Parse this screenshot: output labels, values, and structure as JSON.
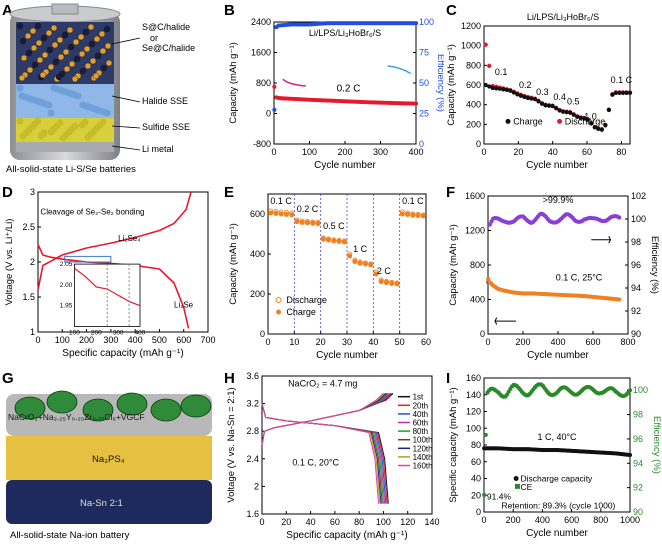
{
  "figure": {
    "panel_labels": [
      "A",
      "B",
      "C",
      "D",
      "E",
      "F",
      "G",
      "H",
      "I"
    ]
  },
  "panel_a": {
    "labels": [
      "S@C/halide",
      "or",
      "Se@C/halide",
      "Halide SSE",
      "Sulfide SSE",
      "Li metal"
    ],
    "caption": "All-solid-state Li-S/Se batteries"
  },
  "panel_g": {
    "labels": [
      "NaCrO₂+Na₂.₂₅Y₀.₂₅Zr₀.₇₅Cl₆+VGCF",
      "Na₃PS₄",
      "Na-Sn 2:1"
    ],
    "caption": "All-solid-state Na-ion battery"
  },
  "chart_data": [
    {
      "id": "B",
      "type": "scatter",
      "title": "Li/LPS/Li₃HoBr₆/S",
      "xlabel": "Cycle number",
      "ylabel": "Capacity (mAh g⁻¹)",
      "y2label": "Efficiency (%)",
      "xlim": [
        0,
        400
      ],
      "ylim": [
        -800,
        2400
      ],
      "y2lim": [
        0,
        100
      ],
      "xticks": [
        0,
        100,
        200,
        300,
        400
      ],
      "yticks": [
        -800,
        0,
        800,
        1600,
        2400
      ],
      "y2ticks": [
        0,
        25,
        50,
        75,
        100
      ],
      "annotation": "0.2 C",
      "series": [
        {
          "name": "Capacity",
          "axis": "left",
          "color": "#e8192c",
          "x": [
            1,
            3,
            5,
            10,
            20,
            40,
            60,
            80,
            100,
            150,
            200,
            250,
            300,
            350,
            400
          ],
          "values": [
            700,
            480,
            430,
            410,
            400,
            390,
            380,
            370,
            360,
            340,
            320,
            300,
            285,
            270,
            260
          ]
        },
        {
          "name": "Efficiency",
          "axis": "right",
          "color": "#1f4fe0",
          "x": [
            1,
            3,
            5,
            10,
            50,
            100,
            150,
            200,
            250,
            300,
            350,
            400
          ],
          "values": [
            28,
            90,
            95,
            97,
            98,
            98,
            99,
            99,
            99,
            99,
            99,
            99
          ]
        }
      ]
    },
    {
      "id": "C",
      "type": "scatter",
      "title": "Li/LPS/Li₃HoBr₆/S",
      "xlabel": "Cycle number",
      "ylabel": "Capacity (mAh g⁻¹)",
      "xlim": [
        0,
        85
      ],
      "ylim": [
        0,
        1200
      ],
      "xticks": [
        0,
        20,
        40,
        60,
        80
      ],
      "yticks": [
        0,
        200,
        400,
        600,
        800,
        1000,
        1200
      ],
      "rate_labels": [
        "0.1",
        "0.2",
        "0.3",
        "0.4",
        "0.5",
        "1.0",
        "0.1 C"
      ],
      "legend": [
        "Charge",
        "Discharge"
      ],
      "series": [
        {
          "name": "Charge",
          "color": "#111111",
          "x": [
            1,
            5,
            10,
            15,
            20,
            25,
            30,
            35,
            40,
            45,
            50,
            55,
            60,
            65,
            70,
            75,
            80,
            85
          ],
          "values": [
            600,
            570,
            560,
            545,
            500,
            470,
            455,
            395,
            385,
            330,
            320,
            270,
            255,
            160,
            140,
            520,
            520,
            520
          ]
        },
        {
          "name": "Discharge",
          "color": "#e8192c",
          "x": [
            1,
            5,
            10,
            15,
            20,
            25,
            30,
            35,
            40,
            45,
            50,
            55,
            60,
            65,
            70,
            75,
            80,
            85
          ],
          "values": [
            1010,
            590,
            570,
            550,
            510,
            480,
            460,
            400,
            390,
            335,
            325,
            275,
            260,
            165,
            145,
            525,
            525,
            525
          ]
        }
      ]
    },
    {
      "id": "D",
      "type": "line",
      "xlabel": "Specific capacity (mAh g⁻¹)",
      "ylabel": "Voltage (V vs. Li⁺/Li)",
      "xlim": [
        0,
        700
      ],
      "ylim": [
        1.0,
        3.0
      ],
      "xticks": [
        0,
        100,
        200,
        300,
        400,
        500,
        600,
        700
      ],
      "yticks": [
        1.0,
        1.5,
        2.0,
        2.5,
        3.0
      ],
      "annotations": [
        "Cleavage of Se₂-Se₂ bonding",
        "Li₂Se₄",
        "Li₂Se",
        "2.05"
      ],
      "inset": {
        "xlim": [
          100,
          400
        ],
        "ylim": [
          1.9,
          2.05
        ],
        "xticks": [
          100,
          200,
          300,
          400
        ],
        "yticks": [
          1.95,
          2.0,
          2.05
        ],
        "x": [
          100,
          150,
          200,
          250,
          300,
          350,
          400
        ],
        "values": [
          2.04,
          2.02,
          1.995,
          1.99,
          1.975,
          1.96,
          1.95
        ]
      },
      "series": [
        {
          "name": "Discharge",
          "color": "#e8192c",
          "x": [
            0,
            20,
            50,
            100,
            150,
            200,
            300,
            400,
            500,
            560,
            600,
            620
          ],
          "values": [
            2.25,
            2.1,
            2.07,
            2.04,
            2.02,
            2.0,
            1.98,
            1.95,
            1.9,
            1.7,
            1.35,
            1.05
          ]
        },
        {
          "name": "Charge",
          "color": "#e8192c",
          "x": [
            0,
            20,
            100,
            200,
            300,
            400,
            500,
            560,
            610,
            630
          ],
          "values": [
            1.6,
            1.95,
            2.1,
            2.2,
            2.27,
            2.35,
            2.45,
            2.55,
            2.75,
            3.0
          ]
        }
      ]
    },
    {
      "id": "E",
      "type": "scatter",
      "xlabel": "Cycle number",
      "ylabel": "Capacity (mAh g⁻¹)",
      "xlim": [
        0,
        60
      ],
      "ylim": [
        0,
        700
      ],
      "xticks": [
        0,
        10,
        20,
        30,
        40,
        50,
        60
      ],
      "yticks": [
        0,
        200,
        400,
        600
      ],
      "rate_labels": [
        "0.1 C",
        "0.2 C",
        "0.5 C",
        "1 C",
        "2 C",
        "0.1 C"
      ],
      "legend": [
        "Discharge",
        "Charge"
      ],
      "series": [
        {
          "name": "Discharge",
          "color": "#f08020",
          "x": [
            1,
            3,
            5,
            7,
            9,
            11,
            13,
            15,
            17,
            19,
            21,
            23,
            25,
            27,
            29,
            31,
            33,
            35,
            37,
            39,
            41,
            43,
            45,
            47,
            49,
            51,
            53,
            55,
            57,
            59
          ],
          "values": [
            615,
            612,
            610,
            608,
            605,
            570,
            565,
            562,
            560,
            558,
            480,
            475,
            470,
            468,
            465,
            400,
            370,
            360,
            355,
            350,
            310,
            270,
            262,
            258,
            255,
            610,
            605,
            600,
            598,
            595
          ]
        },
        {
          "name": "Charge",
          "color": "#f08020",
          "x": [
            1,
            3,
            5,
            7,
            9,
            11,
            13,
            15,
            17,
            19,
            21,
            23,
            25,
            27,
            29,
            31,
            33,
            35,
            37,
            39,
            41,
            43,
            45,
            47,
            49,
            51,
            53,
            55,
            57,
            59
          ],
          "values": [
            605,
            603,
            600,
            598,
            596,
            562,
            558,
            556,
            554,
            552,
            474,
            470,
            466,
            463,
            460,
            390,
            362,
            354,
            350,
            346,
            300,
            262,
            257,
            253,
            250,
            600,
            598,
            594,
            592,
            590
          ]
        }
      ]
    },
    {
      "id": "F",
      "type": "scatter",
      "xlabel": "Cycle number",
      "ylabel": "Capacity (mAh g⁻¹)",
      "y2label": "Efficiency (%)",
      "xlim": [
        0,
        800
      ],
      "ylim": [
        0,
        1600
      ],
      "y2lim": [
        90,
        102
      ],
      "xticks": [
        0,
        200,
        400,
        600,
        800
      ],
      "yticks": [
        0,
        400,
        800,
        1200,
        1600
      ],
      "y2ticks": [
        90,
        92,
        94,
        96,
        98,
        100,
        102
      ],
      "annotations": [
        ">99.9%",
        "0.1 C, 25°C"
      ],
      "series": [
        {
          "name": "Capacity",
          "axis": "left",
          "color": "#f08020",
          "x": [
            1,
            10,
            30,
            60,
            100,
            150,
            200,
            250,
            300,
            350,
            400,
            450,
            500,
            550,
            600,
            650,
            700,
            750
          ],
          "values": [
            640,
            600,
            560,
            520,
            500,
            480,
            470,
            470,
            465,
            460,
            455,
            450,
            445,
            440,
            430,
            420,
            410,
            400
          ]
        },
        {
          "name": "Efficiency",
          "axis": "right",
          "color": "#8a3fd6",
          "x": [
            1,
            10,
            30,
            60,
            100,
            150,
            200,
            250,
            300,
            350,
            400,
            450,
            500,
            550,
            600,
            650,
            700,
            750
          ],
          "values": [
            94.5,
            99.4,
            99.8,
            99.9,
            100.0,
            99.7,
            100.1,
            99.9,
            100.3,
            99.8,
            100.0,
            100.2,
            99.9,
            100.1,
            99.8,
            100.0,
            100.2,
            99.9
          ]
        }
      ]
    },
    {
      "id": "H",
      "type": "line",
      "title": "NaCrO₂ = 4.7 mg",
      "annotation": "0.1 C, 20°C",
      "xlabel": "Specific capacity (mAh g⁻¹)",
      "ylabel": "Voltage (V vs. Na-Sn = 2:1)",
      "xlim": [
        0,
        140
      ],
      "ylim": [
        1.6,
        3.6
      ],
      "xticks": [
        0,
        20,
        40,
        60,
        80,
        100,
        120,
        140
      ],
      "yticks": [
        1.6,
        2.0,
        2.4,
        2.8,
        3.2,
        3.6
      ],
      "legend": [
        "1st",
        "20th",
        "40th",
        "60th",
        "80th",
        "100th",
        "120th",
        "140th",
        "160th"
      ],
      "colors": [
        "#111111",
        "#e8192c",
        "#1f4fe0",
        "#b030c0",
        "#2a9a2a",
        "#7a3e1a",
        "#222288",
        "#b0a020",
        "#e040a0"
      ],
      "charge_end": [
        108,
        107,
        106,
        105,
        104,
        103,
        102,
        101,
        100
      ],
      "discharge_end": [
        104,
        103,
        102,
        101,
        100,
        99,
        98,
        97,
        96
      ]
    },
    {
      "id": "I",
      "type": "scatter",
      "xlabel": "Cycle number",
      "ylabel": "Specific capacity (mAh g⁻¹)",
      "y2label": "Efficiency (%)",
      "xlim": [
        0,
        1000
      ],
      "ylim": [
        0,
        160
      ],
      "y2lim": [
        90,
        101
      ],
      "xticks": [
        0,
        200,
        400,
        600,
        800,
        1000
      ],
      "yticks": [
        0,
        20,
        40,
        60,
        80,
        100,
        120,
        140,
        160
      ],
      "y2ticks": [
        90,
        92,
        94,
        96,
        98,
        100
      ],
      "annotations": [
        "1 C, 40°C",
        "91.4%",
        "Retention: 89.3% (cycle 1000)"
      ],
      "legend": [
        "Discharge capacity",
        "CE"
      ],
      "series": [
        {
          "name": "Discharge capacity",
          "axis": "left",
          "color": "#111111",
          "x": [
            1,
            50,
            100,
            200,
            300,
            400,
            500,
            600,
            700,
            800,
            900,
            1000
          ],
          "values": [
            76,
            76,
            76,
            75,
            75,
            74,
            74,
            73,
            72,
            71,
            70,
            68
          ]
        },
        {
          "name": "CE",
          "axis": "right",
          "color": "#2a8a2a",
          "x": [
            1,
            20,
            50,
            100,
            150,
            200,
            300,
            400,
            500,
            600,
            700,
            800,
            900,
            1000
          ],
          "values": [
            91.4,
            99.5,
            99.8,
            100.0,
            99.7,
            100.1,
            99.9,
            100.2,
            99.8,
            100.0,
            99.9,
            100.1,
            99.7,
            100.0
          ]
        }
      ]
    }
  ]
}
